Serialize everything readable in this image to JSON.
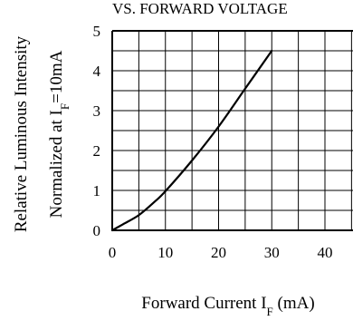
{
  "chart_data": {
    "type": "line",
    "title": "VS. FORWARD VOLTAGE",
    "xlabel": {
      "main": "Forward Current I",
      "subscript": "F",
      "unit": " (mA)"
    },
    "ylabel": {
      "line1": "Relative Luminous Intensity",
      "line2_main": "Normalized at I",
      "line2_subscript": "F",
      "line2_rest": "=10mA"
    },
    "xlim": [
      0,
      40
    ],
    "ylim": [
      0,
      5
    ],
    "x_ticks": [
      "0",
      "10",
      "20",
      "30",
      "40"
    ],
    "y_ticks": [
      "0",
      "1",
      "2",
      "3",
      "4",
      "5"
    ],
    "grid": true,
    "series": [
      {
        "x": [
          0,
          2,
          5,
          8,
          10,
          15,
          20,
          25,
          30
        ],
        "y": [
          0,
          0.15,
          0.38,
          0.72,
          0.98,
          1.75,
          2.6,
          3.55,
          4.5
        ]
      }
    ]
  }
}
